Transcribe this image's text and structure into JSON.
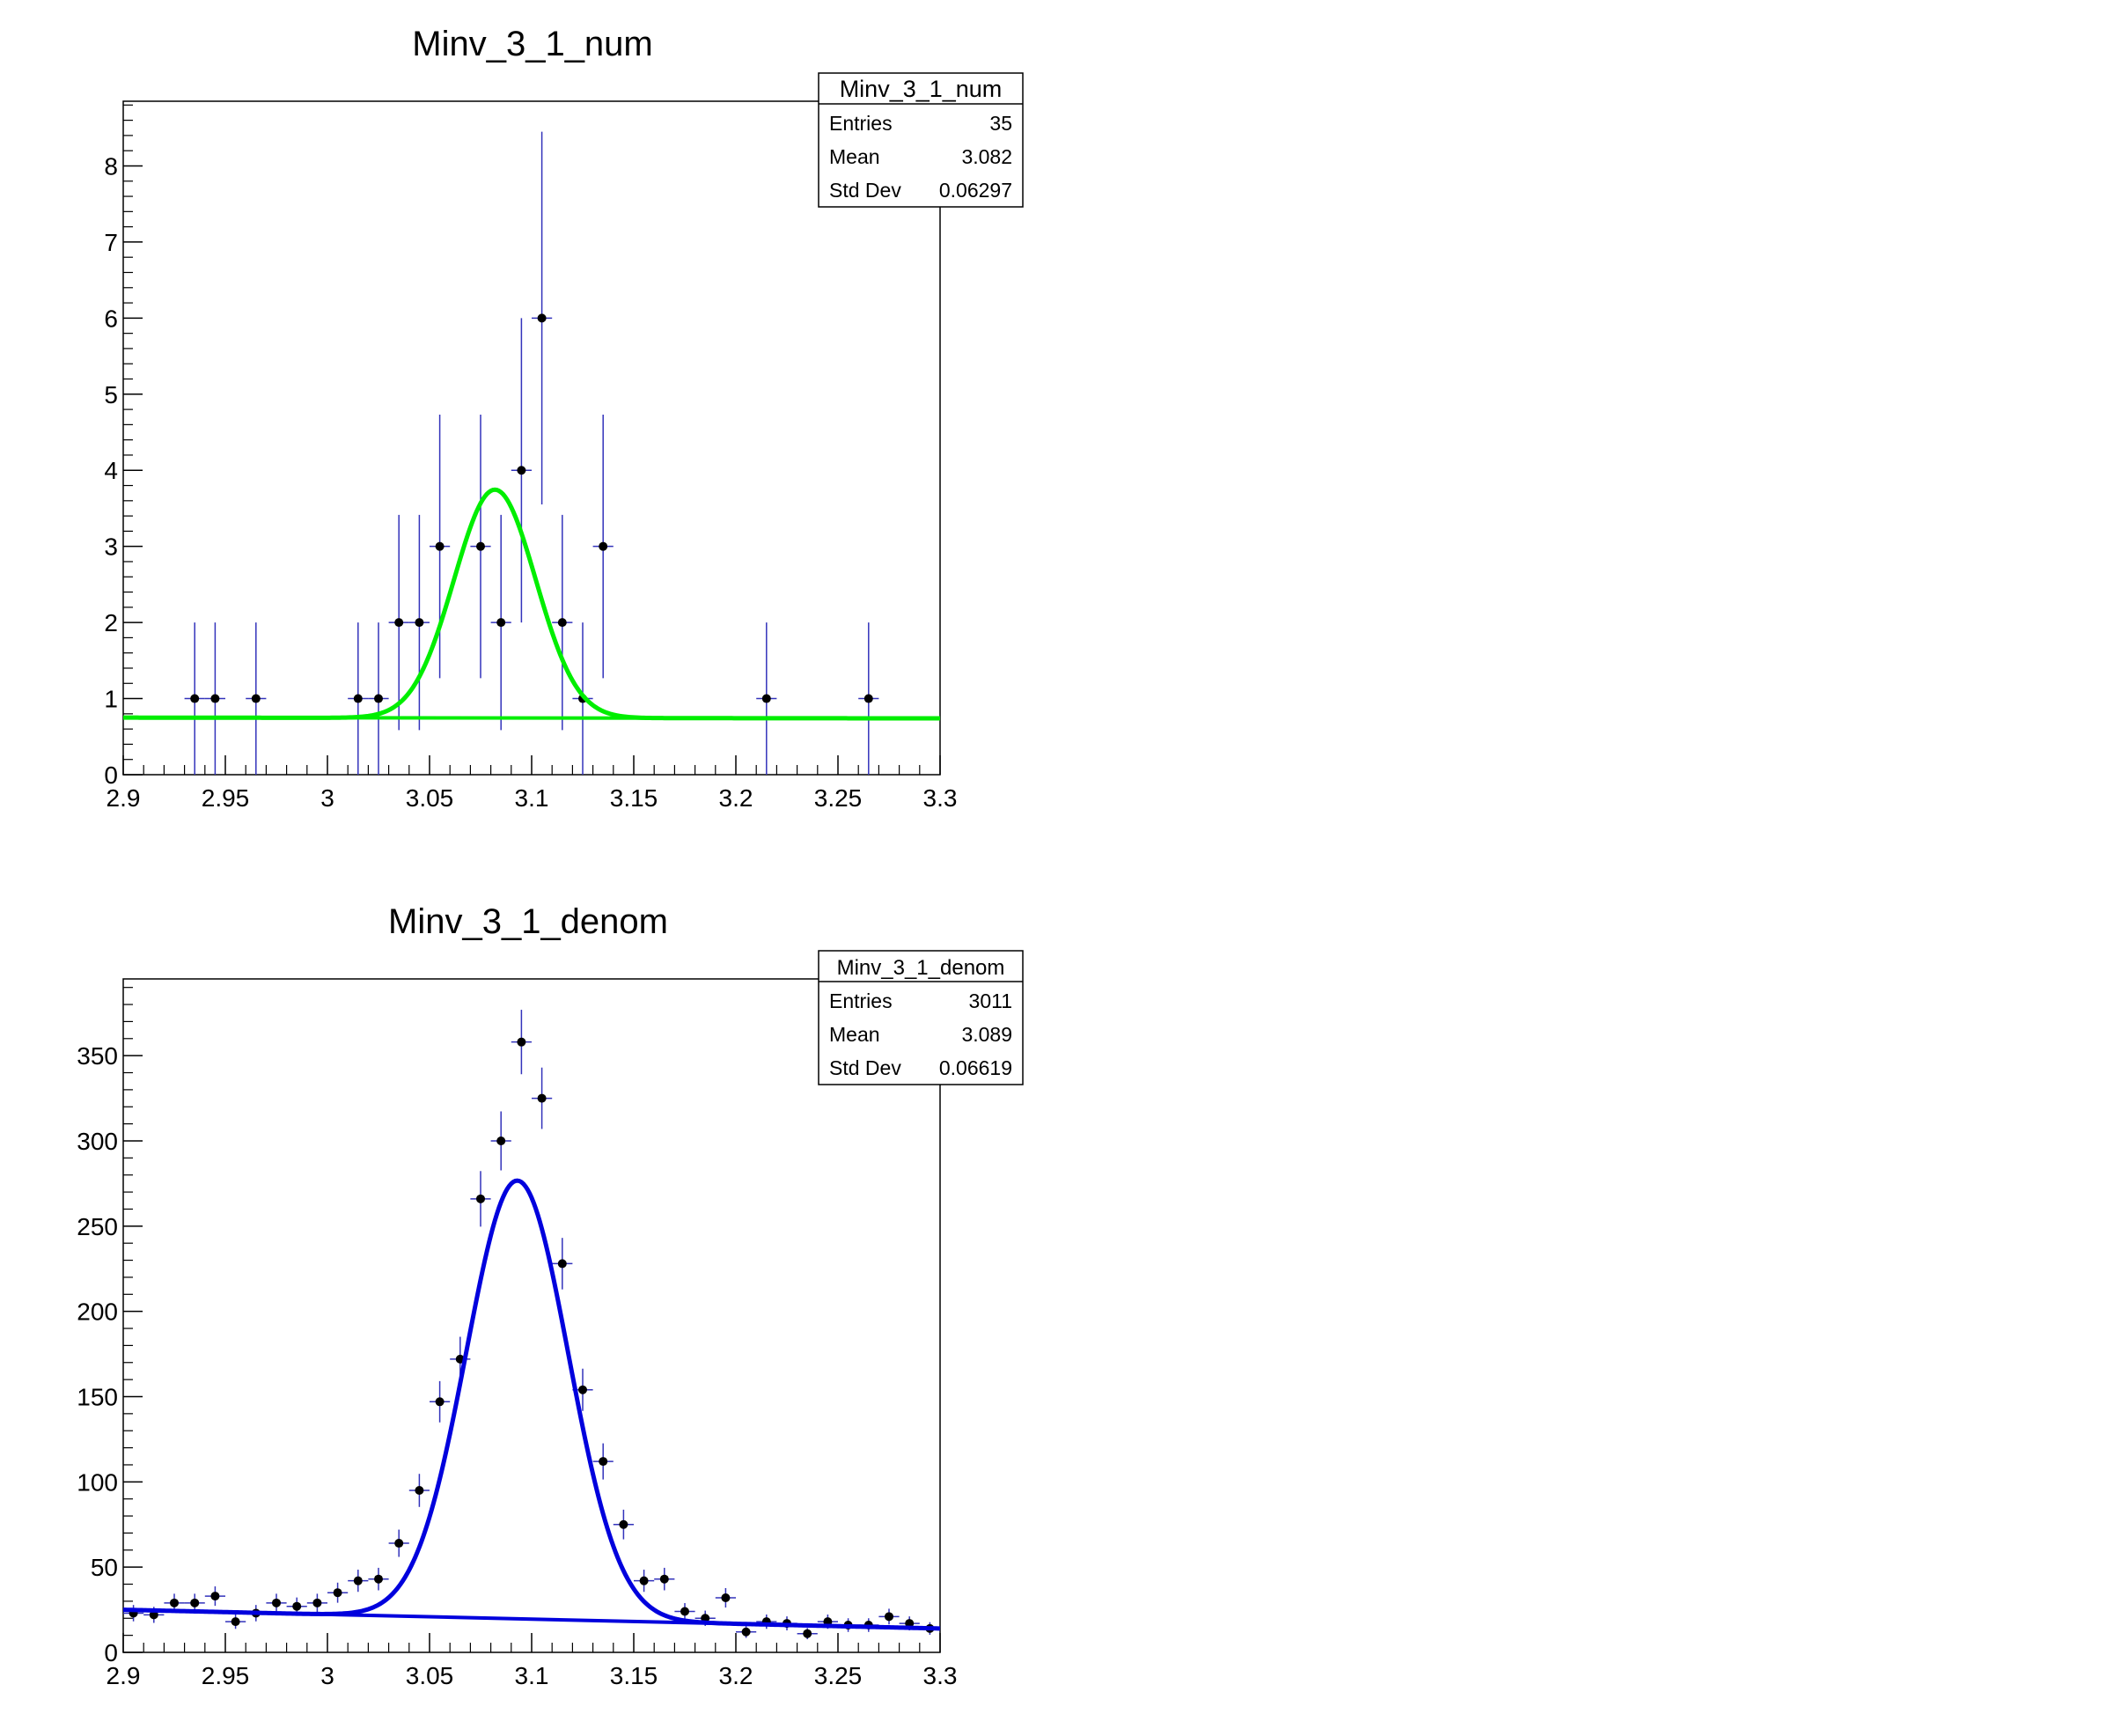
{
  "chart_data": [
    {
      "type": "scatter",
      "title": "Minv_3_1_num",
      "xlabel": "",
      "ylabel": "",
      "xlim": [
        2.9,
        3.3
      ],
      "ylim": [
        0,
        8.85
      ],
      "x_ticks": [
        "2.9",
        "2.95",
        "3",
        "3.05",
        "3.1",
        "3.15",
        "3.2",
        "3.25",
        "3.3"
      ],
      "y_ticks": [
        "0",
        "1",
        "2",
        "3",
        "4",
        "5",
        "6",
        "7",
        "8"
      ],
      "grid": false,
      "bin_width": 0.01,
      "stats": {
        "name": "Minv_3_1_num",
        "rows": [
          {
            "label": "Entries",
            "value": "35"
          },
          {
            "label": "Mean",
            "value": "3.082"
          },
          {
            "label": "Std Dev",
            "value": "0.06297"
          }
        ]
      },
      "points": [
        {
          "x": 2.935,
          "y": 1,
          "err": 1
        },
        {
          "x": 2.945,
          "y": 1,
          "err": 1
        },
        {
          "x": 2.965,
          "y": 1,
          "err": 1
        },
        {
          "x": 3.015,
          "y": 1,
          "err": 1
        },
        {
          "x": 3.025,
          "y": 1,
          "err": 1
        },
        {
          "x": 3.035,
          "y": 2,
          "err": 1.414
        },
        {
          "x": 3.045,
          "y": 2,
          "err": 1.414
        },
        {
          "x": 3.055,
          "y": 3,
          "err": 1.732
        },
        {
          "x": 3.075,
          "y": 3,
          "err": 1.732
        },
        {
          "x": 3.085,
          "y": 2,
          "err": 1.414
        },
        {
          "x": 3.095,
          "y": 4,
          "err": 2
        },
        {
          "x": 3.105,
          "y": 6,
          "err": 2.449
        },
        {
          "x": 3.115,
          "y": 2,
          "err": 1.414
        },
        {
          "x": 3.125,
          "y": 1,
          "err": 1
        },
        {
          "x": 3.135,
          "y": 3,
          "err": 1.732
        },
        {
          "x": 3.215,
          "y": 1,
          "err": 1
        },
        {
          "x": 3.265,
          "y": 1,
          "err": 1
        }
      ],
      "fit": {
        "color": "#00ee00",
        "bg_a": 0.75,
        "bg_b": 0.74,
        "amp": 3.0,
        "mean": 3.082,
        "sigma": 0.02
      },
      "background": {
        "color": "#00ee00",
        "a": 0.75,
        "b": 0.74
      },
      "marker_color": "#000000",
      "errbar_color": "#3333bb"
    },
    {
      "type": "scatter",
      "title": "Minv_3_1_denom",
      "xlabel": "",
      "ylabel": "",
      "xlim": [
        2.9,
        3.3
      ],
      "ylim": [
        0,
        395
      ],
      "x_ticks": [
        "2.9",
        "2.95",
        "3",
        "3.05",
        "3.1",
        "3.15",
        "3.2",
        "3.25",
        "3.3"
      ],
      "y_ticks": [
        "0",
        "50",
        "100",
        "150",
        "200",
        "250",
        "300",
        "350"
      ],
      "grid": false,
      "bin_width": 0.01,
      "stats": {
        "name": "Minv_3_1_denom",
        "rows": [
          {
            "label": "Entries",
            "value": "3011"
          },
          {
            "label": "Mean",
            "value": "3.089"
          },
          {
            "label": "Std Dev",
            "value": "0.06619"
          }
        ]
      },
      "points": [
        {
          "x": 2.905,
          "y": 23,
          "err": 4.8
        },
        {
          "x": 2.915,
          "y": 22,
          "err": 4.7
        },
        {
          "x": 2.925,
          "y": 29,
          "err": 5.4
        },
        {
          "x": 2.935,
          "y": 29,
          "err": 5.4
        },
        {
          "x": 2.945,
          "y": 33,
          "err": 5.7
        },
        {
          "x": 2.955,
          "y": 18,
          "err": 4.2
        },
        {
          "x": 2.965,
          "y": 23,
          "err": 4.8
        },
        {
          "x": 2.975,
          "y": 29,
          "err": 5.4
        },
        {
          "x": 2.985,
          "y": 27,
          "err": 5.2
        },
        {
          "x": 2.995,
          "y": 29,
          "err": 5.4
        },
        {
          "x": 3.005,
          "y": 35,
          "err": 5.9
        },
        {
          "x": 3.015,
          "y": 42,
          "err": 6.5
        },
        {
          "x": 3.025,
          "y": 43,
          "err": 6.6
        },
        {
          "x": 3.035,
          "y": 64,
          "err": 8
        },
        {
          "x": 3.045,
          "y": 95,
          "err": 9.7
        },
        {
          "x": 3.055,
          "y": 147,
          "err": 12.1
        },
        {
          "x": 3.065,
          "y": 172,
          "err": 13.1
        },
        {
          "x": 3.075,
          "y": 266,
          "err": 16.3
        },
        {
          "x": 3.085,
          "y": 300,
          "err": 17.3
        },
        {
          "x": 3.095,
          "y": 358,
          "err": 18.9
        },
        {
          "x": 3.105,
          "y": 325,
          "err": 18
        },
        {
          "x": 3.115,
          "y": 228,
          "err": 15.1
        },
        {
          "x": 3.125,
          "y": 154,
          "err": 12.4
        },
        {
          "x": 3.135,
          "y": 112,
          "err": 10.6
        },
        {
          "x": 3.145,
          "y": 75,
          "err": 8.7
        },
        {
          "x": 3.155,
          "y": 42,
          "err": 6.5
        },
        {
          "x": 3.165,
          "y": 43,
          "err": 6.6
        },
        {
          "x": 3.175,
          "y": 24,
          "err": 4.9
        },
        {
          "x": 3.185,
          "y": 20,
          "err": 4.5
        },
        {
          "x": 3.195,
          "y": 32,
          "err": 5.7
        },
        {
          "x": 3.205,
          "y": 12,
          "err": 3.5
        },
        {
          "x": 3.215,
          "y": 18,
          "err": 4.2
        },
        {
          "x": 3.225,
          "y": 17,
          "err": 4.1
        },
        {
          "x": 3.235,
          "y": 11,
          "err": 3.3
        },
        {
          "x": 3.245,
          "y": 18,
          "err": 4.2
        },
        {
          "x": 3.255,
          "y": 16,
          "err": 4
        },
        {
          "x": 3.265,
          "y": 16,
          "err": 4
        },
        {
          "x": 3.275,
          "y": 21,
          "err": 4.6
        },
        {
          "x": 3.285,
          "y": 17,
          "err": 4.1
        },
        {
          "x": 3.295,
          "y": 14,
          "err": 3.7
        }
      ],
      "fit": {
        "color": "#0000dd",
        "bg_a": 25,
        "bg_b": 14,
        "amp": 257,
        "mean": 3.093,
        "sigma": 0.025
      },
      "background": {
        "color": "#0000dd",
        "a": 25,
        "b": 14
      },
      "marker_color": "#000000",
      "errbar_color": "#3333bb"
    }
  ]
}
